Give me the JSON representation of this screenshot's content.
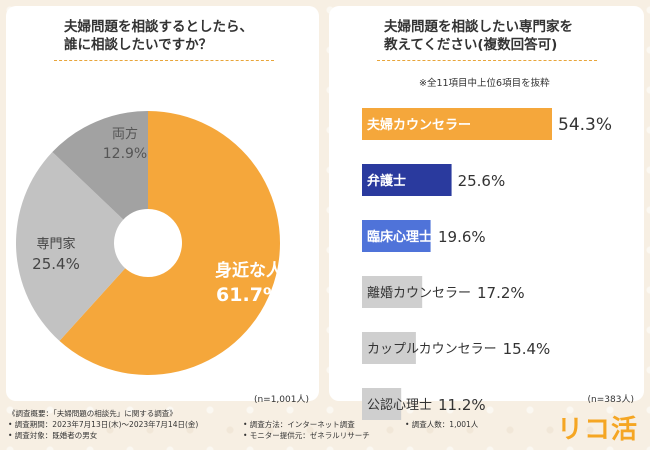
{
  "chart_data": [
    {
      "type": "pie",
      "title": "夫婦問題を相談するとしたら、\n誰に相談したいですか？",
      "categories": [
        "身近な人",
        "専門家",
        "両方"
      ],
      "values": [
        61.7,
        25.4,
        12.9
      ],
      "value_labels": [
        "61.7%",
        "25.4%",
        "12.9%"
      ],
      "colors": [
        "#f5a73b",
        "#c2c2c2",
        "#a2a2a2"
      ],
      "sample": "(n=1,001人)"
    },
    {
      "type": "bar",
      "title": "夫婦問題を相談したい専門家を\n教えてください(複数回答可)",
      "note": "※全11項目中上位6項目を抜粋",
      "categories": [
        "夫婦カウンセラー",
        "弁護士",
        "臨床心理士",
        "離婚カウンセラー",
        "カップルカウンセラー",
        "公認心理士"
      ],
      "values": [
        54.3,
        25.6,
        19.6,
        17.2,
        15.4,
        11.2
      ],
      "value_labels": [
        "54.3%",
        "25.6%",
        "19.6%",
        "17.2%",
        "15.4%",
        "11.2%"
      ],
      "colors": [
        "#f5a73b",
        "#2a3a9e",
        "#4f73d9",
        "#cfcfcf",
        "#cfcfcf",
        "#cfcfcf"
      ],
      "label_colors": [
        "#ffffff",
        "#ffffff",
        "#ffffff",
        "#333333",
        "#333333",
        "#333333"
      ],
      "xlim": [
        0,
        54.3
      ],
      "sample": "(n=383人)"
    }
  ],
  "footer": {
    "heading": "《調査概要：「夫婦問題の相談先」に関する調査》",
    "period": "• 調査期間：2023年7月13日(木)～2023年7月14日(金)",
    "target": "• 調査対象：既婚者の男女",
    "method": "• 調査方法：インターネット調査",
    "provider": "• モニター提供元：ゼネラルリサーチ",
    "count": "• 調査人数：1,001人"
  },
  "brand": {
    "logo_text": "リコ活",
    "accent_color": "#f5a623"
  }
}
